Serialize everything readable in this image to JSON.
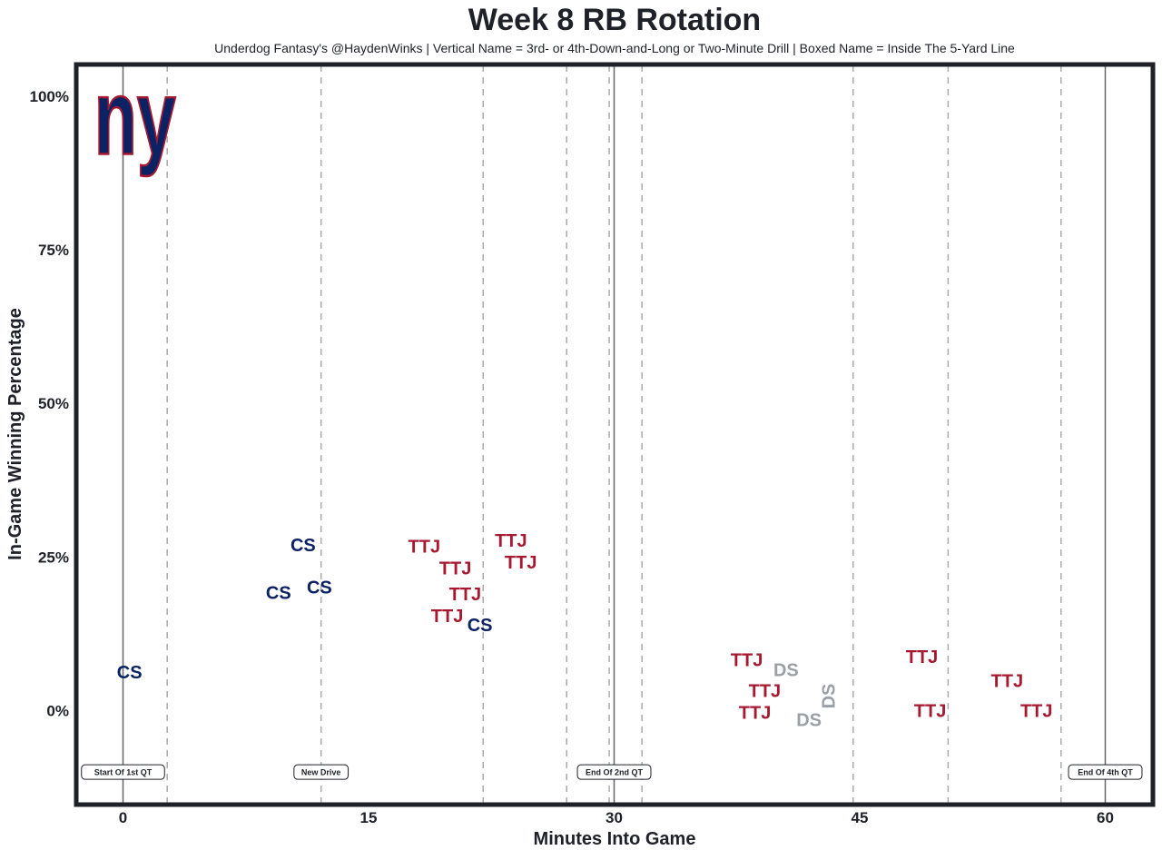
{
  "chart_data": {
    "type": "scatter",
    "title": "Week 8 RB Rotation",
    "subtitle": "Underdog Fantasy's @HaydenWinks | Vertical Name = 3rd- or 4th-Down-and-Long or Two-Minute Drill | Boxed Name = Inside The 5-Yard Line",
    "xlabel": "Minutes Into Game",
    "ylabel": "In-Game Winning Percentage",
    "xlim": [
      -2.8,
      62.8
    ],
    "ylim": [
      -15,
      105
    ],
    "xticks": [
      0,
      15,
      30,
      45,
      60
    ],
    "xtick_labels": [
      "0",
      "15",
      "30",
      "45",
      "60"
    ],
    "yticks": [
      0,
      25,
      50,
      75,
      100
    ],
    "ytick_labels": [
      "0%",
      "25%",
      "50%",
      "75%",
      "100%"
    ],
    "grid": false,
    "logo": {
      "text": "ny",
      "fill": "#0B2265",
      "stroke": "#A71930"
    },
    "colors": {
      "CS": "#0B2265",
      "TTJ": "#A71930",
      "DS": "#9AA0A6"
    },
    "points": [
      {
        "label": "CS",
        "x": 0.4,
        "y": 6.3,
        "vertical": false
      },
      {
        "label": "CS",
        "x": 9.5,
        "y": 19.2,
        "vertical": false
      },
      {
        "label": "CS",
        "x": 11.0,
        "y": 27.0,
        "vertical": false
      },
      {
        "label": "CS",
        "x": 12.0,
        "y": 20.1,
        "vertical": false
      },
      {
        "label": "CS",
        "x": 21.8,
        "y": 14.0,
        "vertical": false
      },
      {
        "label": "TTJ",
        "x": 18.4,
        "y": 25.7,
        "vertical": false
      },
      {
        "label": "TTJ",
        "x": 20.3,
        "y": 24.2,
        "vertical": false
      },
      {
        "label": "TTJ",
        "x": 19.8,
        "y": 15.9,
        "vertical": false
      },
      {
        "label": "TTJ",
        "x": 20.9,
        "y": 18.6,
        "vertical": false
      },
      {
        "label": "TTJ",
        "x": 23.7,
        "y": 26.1,
        "vertical": false
      },
      {
        "label": "TTJ",
        "x": 24.3,
        "y": 25.8,
        "vertical": false
      },
      {
        "label": "TTJ",
        "x": 38.1,
        "y": 8.3,
        "vertical": false
      },
      {
        "label": "TTJ",
        "x": 38.6,
        "y": 0.0,
        "vertical": false
      },
      {
        "label": "TTJ",
        "x": 39.2,
        "y": 3.1,
        "vertical": false
      },
      {
        "label": "DS",
        "x": 40.5,
        "y": 6.5,
        "vertical": false
      },
      {
        "label": "DS",
        "x": 41.9,
        "y": 0.0,
        "vertical": false
      },
      {
        "label": "DS",
        "x": 43.1,
        "y": 0.9,
        "vertical": true
      },
      {
        "label": "TTJ",
        "x": 48.8,
        "y": 8.8,
        "vertical": false
      },
      {
        "label": "TTJ",
        "x": 49.3,
        "y": 0.0,
        "vertical": false
      },
      {
        "label": "TTJ",
        "x": 54.0,
        "y": 4.9,
        "vertical": false
      },
      {
        "label": "TTJ",
        "x": 55.8,
        "y": 0.0,
        "vertical": false
      }
    ],
    "quarter_lines": [
      0,
      30,
      60
    ],
    "drive_lines": [
      2.7,
      12.1,
      22.0,
      27.1,
      29.7,
      31.7,
      44.6,
      50.4,
      57.3
    ],
    "annotations": [
      {
        "text": "Start Of 1st QT",
        "x": 0,
        "y": -10
      },
      {
        "text": "New Drive",
        "x": 12.1,
        "y": -10
      },
      {
        "text": "End Of 2nd QT",
        "x": 30,
        "y": -10
      },
      {
        "text": "End Of 4th QT",
        "x": 60,
        "y": -10
      }
    ]
  }
}
